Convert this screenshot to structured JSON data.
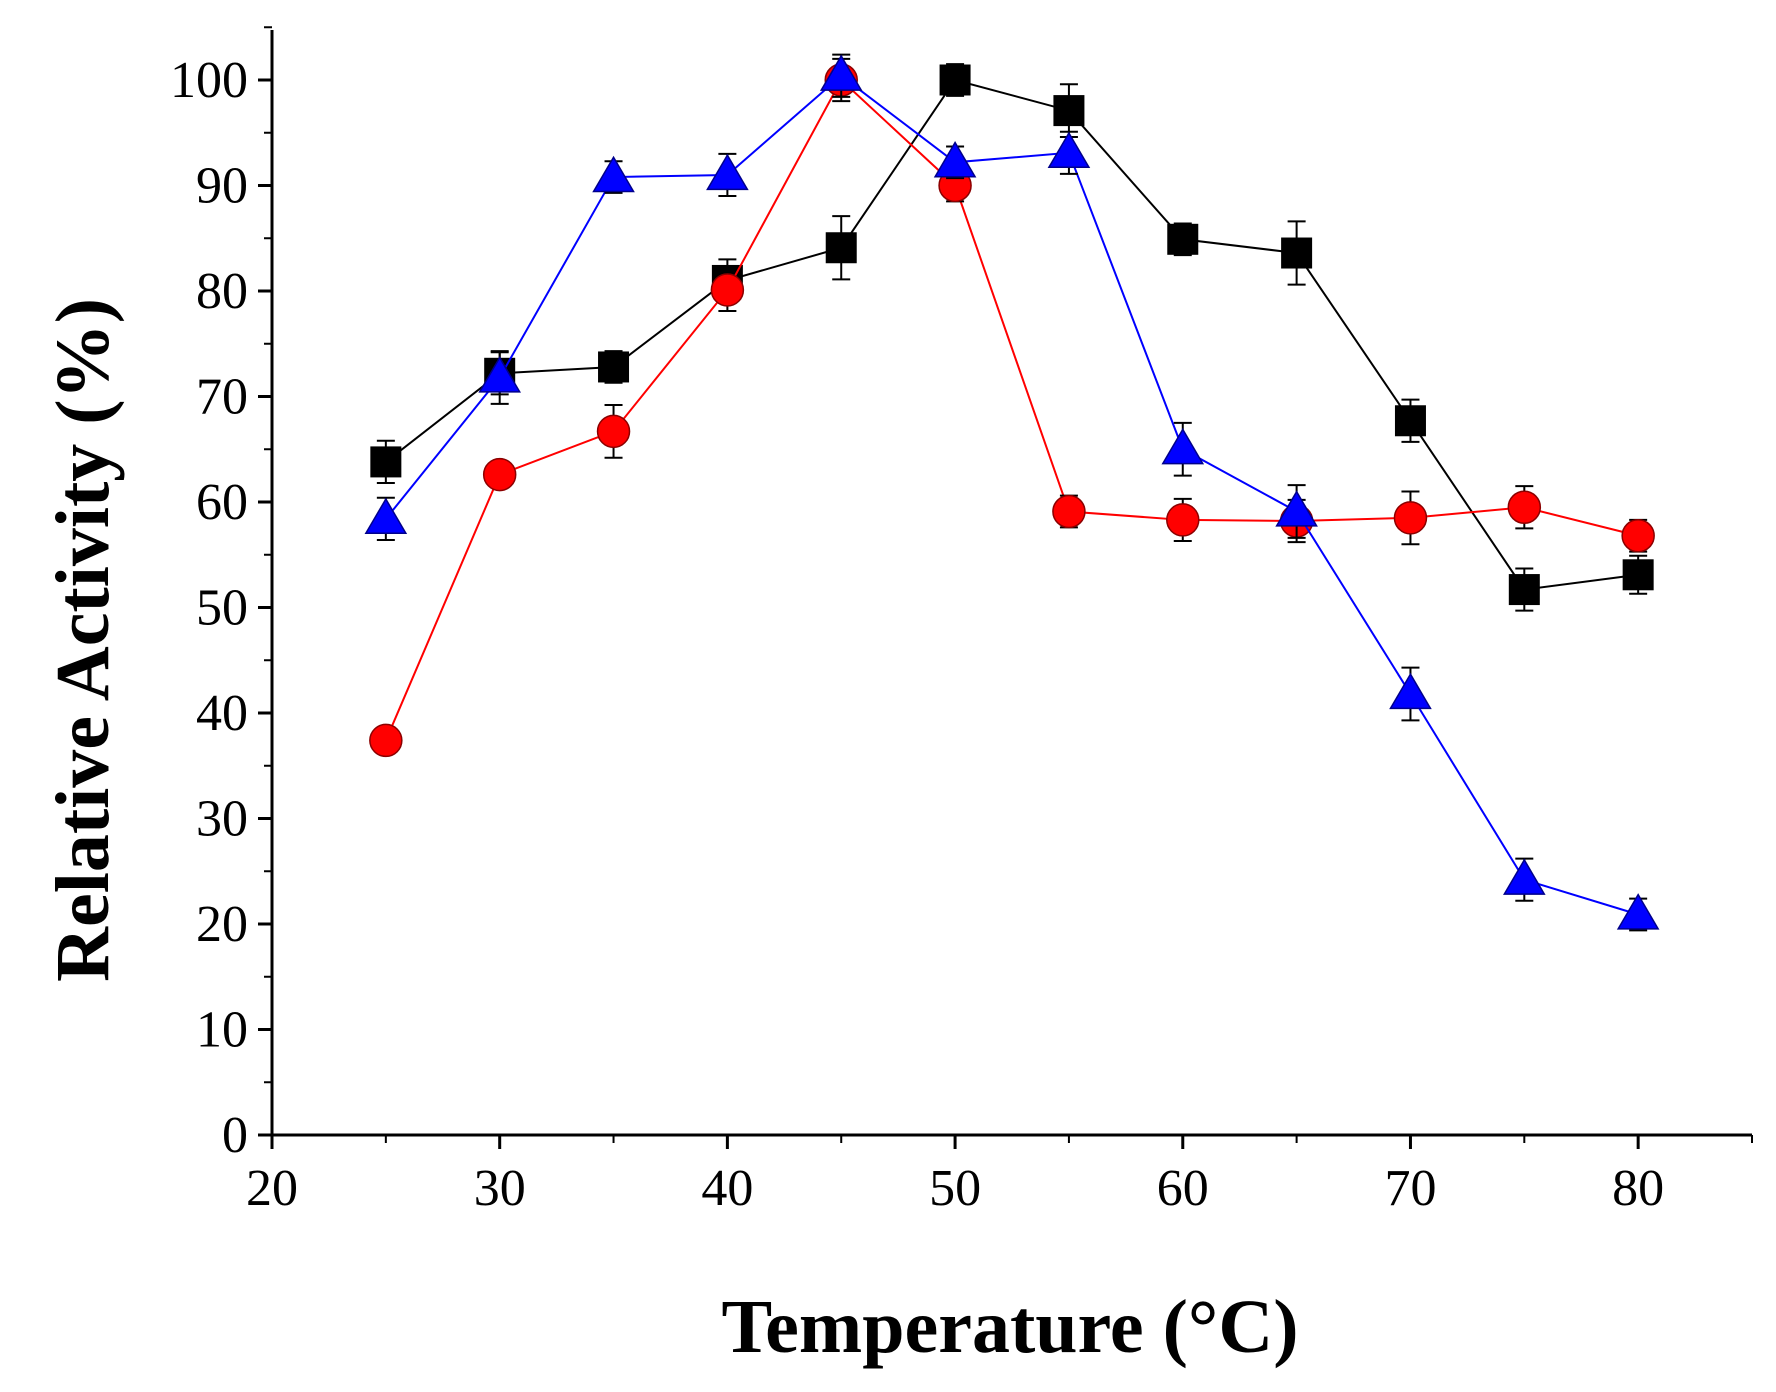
{
  "chart_data": {
    "type": "line",
    "title": "",
    "xlabel": "Temperature (°C)",
    "ylabel": "Relative Activity (%)",
    "xlim": [
      20,
      85
    ],
    "ylim": [
      0,
      105
    ],
    "xticks": [
      20,
      30,
      40,
      50,
      60,
      70,
      80
    ],
    "xtick_labels": [
      "20",
      "30",
      "40",
      "50",
      "60",
      "70",
      "80"
    ],
    "yticks": [
      0,
      10,
      20,
      30,
      40,
      50,
      60,
      70,
      80,
      90,
      100
    ],
    "ytick_labels": [
      "0",
      "10",
      "20",
      "30",
      "40",
      "50",
      "60",
      "70",
      "80",
      "90",
      "100"
    ],
    "grid": false,
    "legend": "none",
    "x": [
      25,
      30,
      35,
      40,
      45,
      50,
      55,
      60,
      65,
      70,
      75,
      80
    ],
    "series": [
      {
        "name": "black squares",
        "color": "#000000",
        "marker": "square",
        "values": [
          63.8,
          72.2,
          72.8,
          81,
          84.1,
          100,
          97.1,
          84.9,
          83.6,
          67.7,
          51.7,
          53.1
        ],
        "errors": [
          2.0,
          2.0,
          1.5,
          2.0,
          3.0,
          1.5,
          2.5,
          1.5,
          3.0,
          2.0,
          2.0,
          1.8
        ]
      },
      {
        "name": "red circles",
        "color": "#ff0000",
        "marker": "circle",
        "values": [
          37.4,
          62.6,
          66.7,
          80.1,
          100,
          90,
          59.1,
          58.3,
          58.2,
          58.5,
          59.5,
          56.8
        ],
        "errors": [
          1.0,
          1.0,
          2.5,
          2.0,
          2.0,
          1.5,
          1.5,
          2.0,
          2.0,
          2.5,
          2.0,
          1.5
        ]
      },
      {
        "name": "blue triangles",
        "color": "#0000ff",
        "marker": "triangle",
        "values": [
          58.4,
          71.8,
          90.8,
          91,
          100.4,
          92.2,
          93.1,
          65,
          59.1,
          41.8,
          24.2,
          20.9
        ],
        "errors": [
          2.0,
          2.5,
          1.5,
          2.0,
          2.0,
          1.5,
          2.0,
          2.5,
          2.5,
          2.5,
          2.0,
          1.5
        ]
      }
    ]
  }
}
